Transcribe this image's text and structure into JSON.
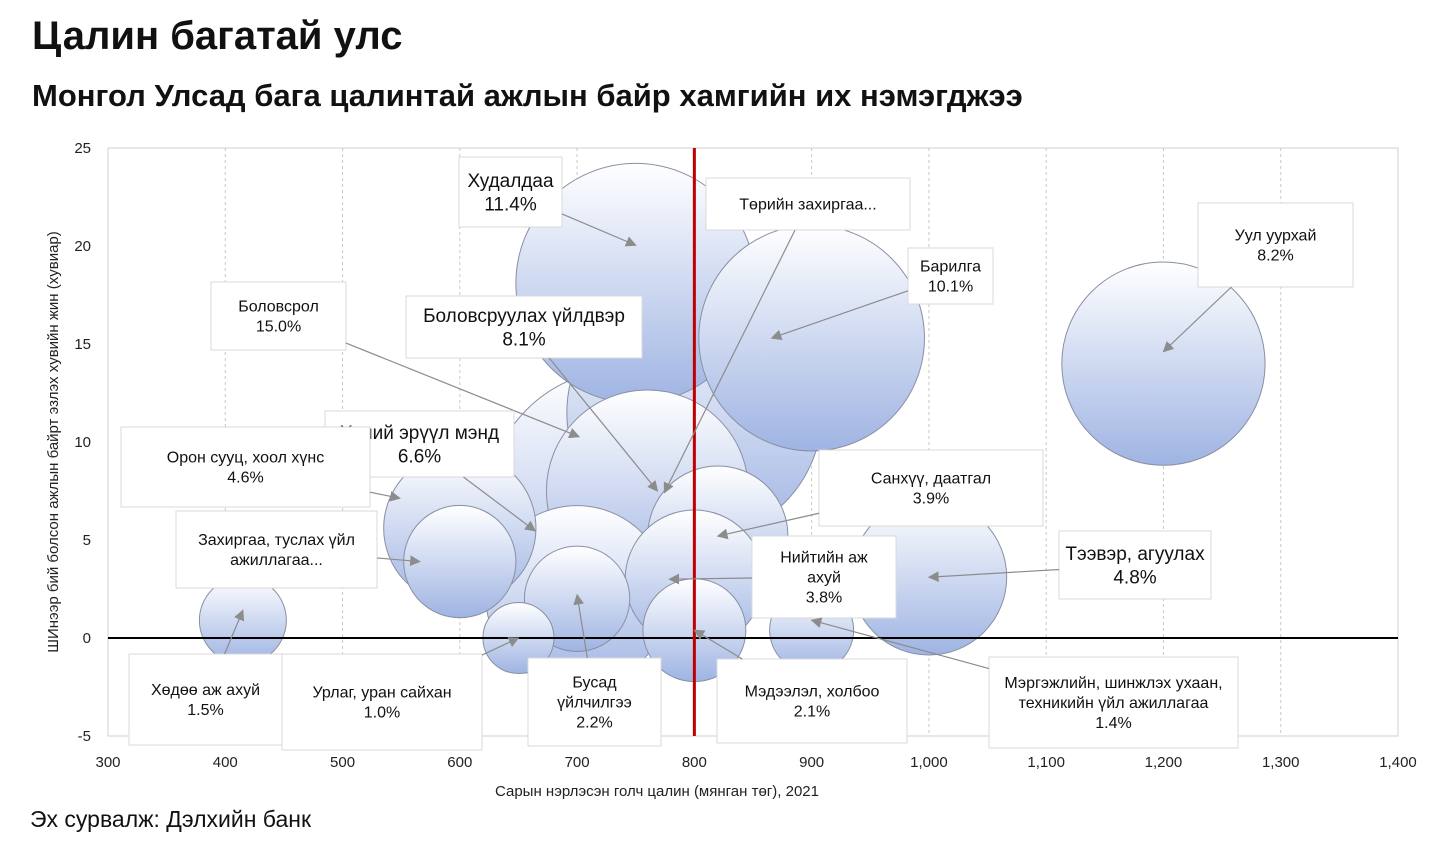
{
  "title": "Цалин багатай улс",
  "subtitle": "Монгол Улсад бага цалинтай ажлын байр хамгийн их нэмэгджээ",
  "source": "Эх сурвалж: Дэлхийн банк",
  "colors": {
    "bubble_light": "#ffffff",
    "bubble_dark": "#9fb4e3",
    "bubble_stroke": "#8a8fa3",
    "median_line": "#c00000",
    "arrow": "#8c8c8c"
  },
  "chart_data": {
    "type": "bubble",
    "xlabel": "Сарын нэрлэсэн голч цалин (мянган төг), 2021",
    "ylabel": "ШИнээр бий болсон ажлын байрт эзлэх хувийн жин (хувиар)",
    "xlim": [
      300,
      1400
    ],
    "ylim": [
      -5,
      25
    ],
    "x_ticks": [
      "300",
      "400",
      "500",
      "600",
      "700",
      "800",
      "900",
      "1,000",
      "1,100",
      "1,200",
      "1,300",
      "1,400"
    ],
    "y_ticks": [
      "25",
      "20",
      "15",
      "10",
      "5",
      "0",
      "-5"
    ],
    "grid": "vertical dashed",
    "median_line_x": 800,
    "series": [
      {
        "label": [
          "Худалдаа",
          "11.4%"
        ],
        "x": 750,
        "y": 18.1,
        "size": 11.4
      },
      {
        "label": [
          "Төрийн захиргаа..."
        ],
        "x": 800,
        "y": 11.5,
        "size": 12.9
      },
      {
        "label": [
          "Барилга",
          "10.1%"
        ],
        "x": 900,
        "y": 15.3,
        "size": 10.1
      },
      {
        "label": [
          "Уул уурхай",
          "8.2%"
        ],
        "x": 1200,
        "y": 14.0,
        "size": 8.2
      },
      {
        "label": [
          "Боловсрол",
          "15.0%"
        ],
        "x": 740,
        "y": 6.7,
        "size": 15.0
      },
      {
        "label": [
          "Боловсруулах  үйлдвэр",
          "8.1%"
        ],
        "x": 760,
        "y": 7.5,
        "size": 8.1
      },
      {
        "label": [
          "Хүний эрүүл мэнд",
          "6.6%"
        ],
        "x": 700,
        "y": 2.1,
        "size": 6.6
      },
      {
        "label": [
          "Орон сууц, хоол хүнс",
          "4.6%"
        ],
        "x": 600,
        "y": 5.6,
        "size": 4.6
      },
      {
        "label": [
          "Захиргаа, туслах үйл",
          "ажиллагаа..."
        ],
        "x": 600,
        "y": 3.9,
        "size": 2.5
      },
      {
        "label": [
          "Санхүү, даатгал",
          "3.9%"
        ],
        "x": 820,
        "y": 5.2,
        "size": 3.9
      },
      {
        "label": [
          "Нийтийн аж",
          "ахуй",
          "3.8%"
        ],
        "x": 800,
        "y": 3.0,
        "size": 3.8
      },
      {
        "label": [
          "Тээвэр, агуулах",
          "4.8%"
        ],
        "x": 1000,
        "y": 3.1,
        "size": 4.8
      },
      {
        "label": [
          "Хөдөө аж ахуй",
          "1.5%"
        ],
        "x": 415,
        "y": 0.9,
        "size": 1.5
      },
      {
        "label": [
          "Урлаг, уран сайхан",
          "1.0%"
        ],
        "x": 650,
        "y": 0.0,
        "size": 1.0
      },
      {
        "label": [
          "Бусад",
          "үйлчилгээ",
          "2.2%"
        ],
        "x": 700,
        "y": 2.0,
        "size": 2.2
      },
      {
        "label": [
          "Мэдээлэл, холбоо",
          "2.1%"
        ],
        "x": 800,
        "y": 0.4,
        "size": 2.1
      },
      {
        "label": [
          "Мэргэжлийн, шинжлэх ухаан,",
          "техникийн үйл ажиллагаа",
          "1.4%"
        ],
        "x": 900,
        "y": 0.4,
        "size": 1.4
      }
    ]
  }
}
